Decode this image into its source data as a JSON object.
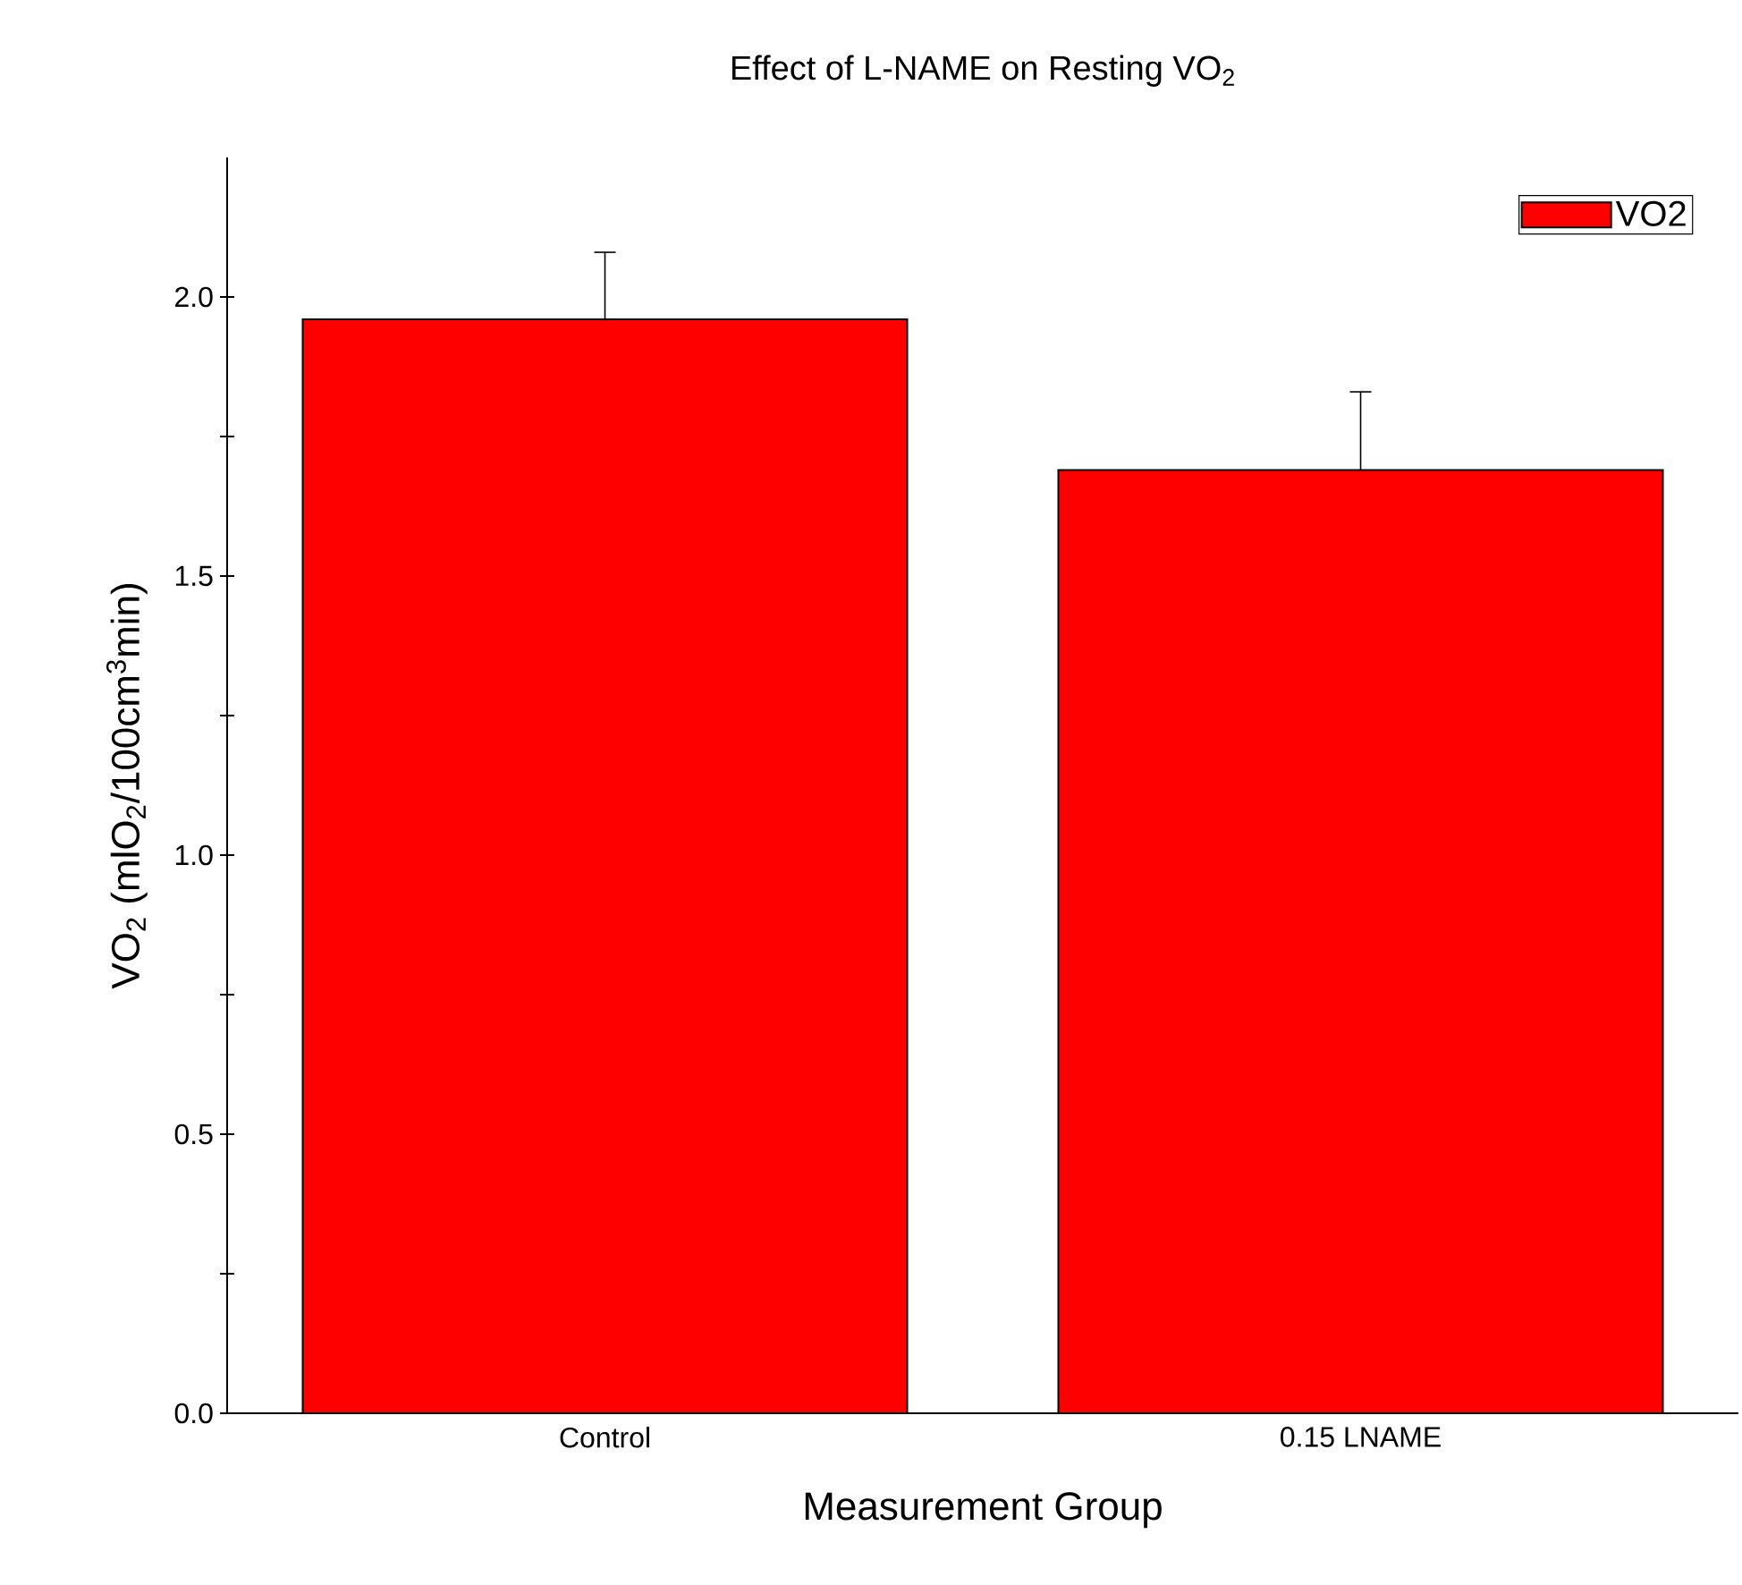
{
  "chart_data": {
    "type": "bar",
    "title": "Effect of L-NAME on Resting VO$_{2}$",
    "xlabel": "Measurement Group",
    "ylabel": "VO$_{2}$ (mlO$_{2}$/100cm$^{3}$min)",
    "categories": [
      "Control",
      "0.15 LNAME"
    ],
    "series": [
      {
        "name": "VO2",
        "color": "#ff0000",
        "values": [
          1.96,
          1.69
        ],
        "errors": [
          [
            1.96,
            2.08
          ],
          [
            1.69,
            1.83
          ]
        ]
      }
    ],
    "ylim": [
      0,
      2.25
    ],
    "yticks": [
      {
        "value": 0,
        "label": "0.0"
      },
      {
        "value": 0.25,
        "label": null
      },
      {
        "value": 0.5,
        "label": "0.5"
      },
      {
        "value": 0.75,
        "label": null
      },
      {
        "value": 1,
        "label": "1.0"
      },
      {
        "value": 1.25,
        "label": null
      },
      {
        "value": 1.5,
        "label": "1.5"
      },
      {
        "value": 1.75,
        "label": null
      },
      {
        "value": 2,
        "label": "2.0"
      }
    ],
    "legend": "top right",
    "grid": false
  }
}
